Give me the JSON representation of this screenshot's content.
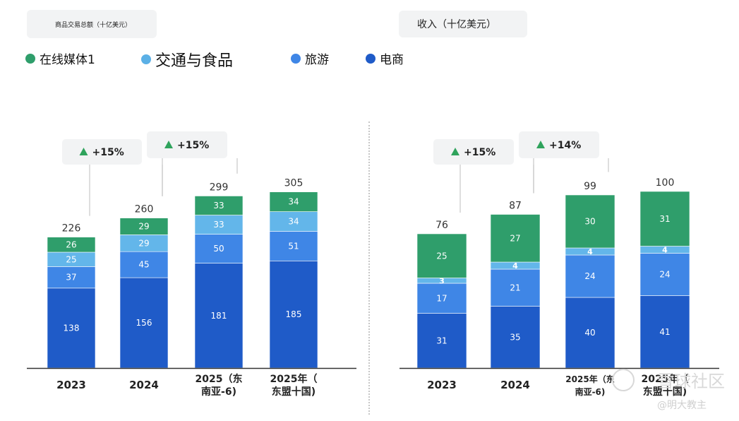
{
  "legend": [
    {
      "label": "在线媒体1",
      "color": "#2f9e6b",
      "font_size": 17
    },
    {
      "label": "交通与食品",
      "color": "#5bb0e6",
      "font_size": 22
    },
    {
      "label": "旅游",
      "color": "#3f86e6",
      "font_size": 17
    },
    {
      "label": "电商",
      "color": "#1f5bc8",
      "font_size": 17
    }
  ],
  "watermark": {
    "main": "雪球社区",
    "sub": "@明大教主"
  },
  "chart_data": [
    {
      "type": "bar",
      "title": "商品交易总额（十亿美元）",
      "categories": [
        "2023",
        "2024",
        "2025（东南亚-6）",
        "2025年（东盟十国）"
      ],
      "category_lines": [
        [
          "2023"
        ],
        [
          "2024"
        ],
        [
          "2025（东",
          "南亚-6)"
        ],
        [
          "2025年（",
          "东盟十国)"
        ]
      ],
      "series": [
        {
          "name": "电商",
          "values": [
            138,
            156,
            181,
            185
          ],
          "color": "#1f5bc8"
        },
        {
          "name": "旅游",
          "values": [
            37,
            45,
            50,
            51
          ],
          "color": "#3f86e6"
        },
        {
          "name": "交通与食品",
          "values": [
            25,
            29,
            33,
            34
          ],
          "color": "#63b6ea"
        },
        {
          "name": "在线媒体1",
          "values": [
            26,
            29,
            33,
            34
          ],
          "color": "#2f9e6b"
        }
      ],
      "totals": [
        226,
        260,
        299,
        305
      ],
      "growth_labels": [
        {
          "text": "+15%",
          "from": 0,
          "to": 1
        },
        {
          "text": "+15%",
          "from": 1,
          "to": 2
        }
      ]
    },
    {
      "type": "bar",
      "title": "收入（十亿美元）",
      "categories": [
        "2023",
        "2024",
        "2025年（东南亚-6）",
        "2025年（东盟十国）"
      ],
      "category_lines": [
        [
          "2023"
        ],
        [
          "2024"
        ],
        [
          "2025年（东",
          "南亚-6)"
        ],
        [
          "2025年（",
          "东盟十国)"
        ]
      ],
      "series": [
        {
          "name": "电商",
          "values": [
            31,
            35,
            40,
            41
          ],
          "color": "#1f5bc8"
        },
        {
          "name": "旅游",
          "values": [
            17,
            21,
            24,
            24
          ],
          "color": "#3f86e6"
        },
        {
          "name": "交通与食品",
          "values": [
            3,
            4,
            4,
            4
          ],
          "color": "#63b6ea"
        },
        {
          "name": "在线媒体1",
          "values": [
            25,
            27,
            30,
            31
          ],
          "color": "#2f9e6b"
        }
      ],
      "totals": [
        76,
        87,
        99,
        100
      ],
      "growth_labels": [
        {
          "text": "+15%",
          "from": 0,
          "to": 1
        },
        {
          "text": "+14%",
          "from": 1,
          "to": 2
        }
      ]
    }
  ]
}
